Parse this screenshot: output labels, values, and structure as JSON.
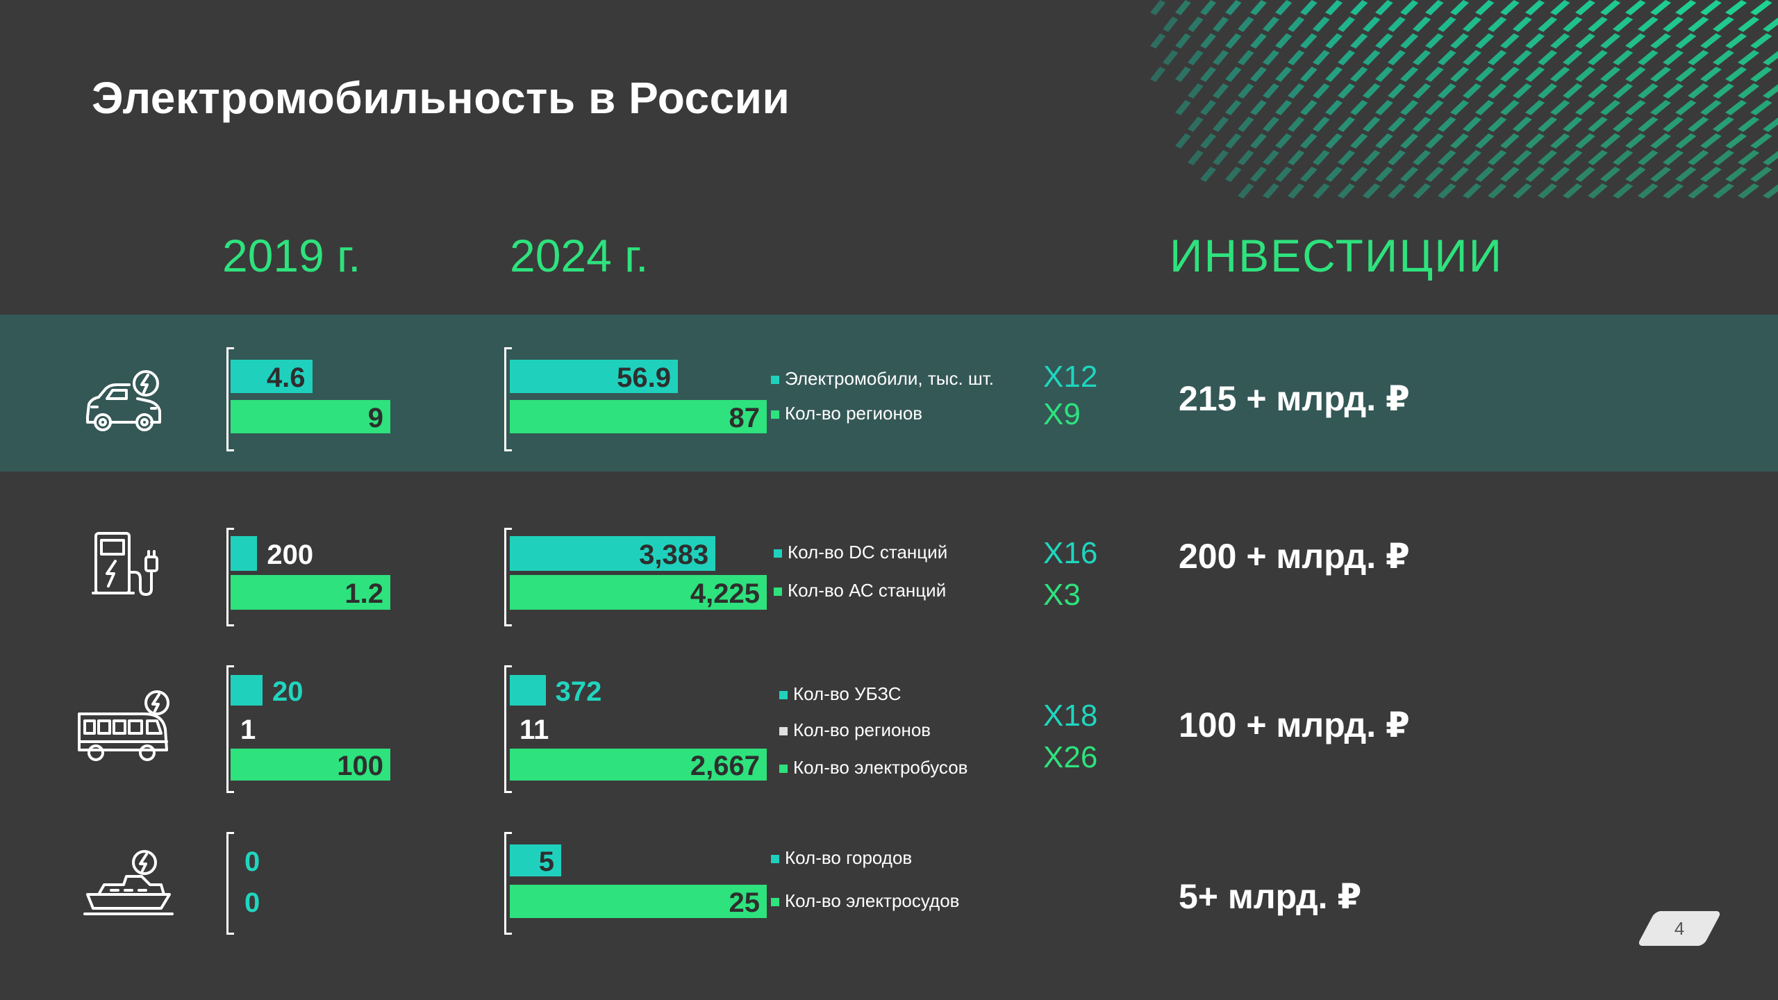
{
  "title": "Электромобильность в России",
  "headers": {
    "y2019": "2019 г.",
    "y2024": "2024 г.",
    "invest": "ИНВЕСТИЦИИ"
  },
  "colors": {
    "teal": "#1fd1bd",
    "green": "#2ee27d",
    "background": "#3a3a3a",
    "band": "#345856",
    "accent": "#2ee27d"
  },
  "page_number": "4",
  "rows": [
    {
      "icon": "electric-car-icon",
      "legend": [
        "Электромобили, тыс. шт.",
        "Кол-во регионов"
      ],
      "multipliers": [
        "X12",
        "X9"
      ],
      "investment": "215 + млрд. ₽"
    },
    {
      "icon": "charging-station-icon",
      "legend": [
        "Кол-во DC станций",
        "Кол-во АС станций"
      ],
      "multipliers": [
        "X16",
        "X3"
      ],
      "investment": "200 + млрд. ₽"
    },
    {
      "icon": "electric-bus-icon",
      "legend": [
        "Кол-во УБЗС",
        "Кол-во регионов",
        "Кол-во электробусов"
      ],
      "multipliers": [
        "X18",
        "X26"
      ],
      "investment": "100 + млрд. ₽"
    },
    {
      "icon": "electric-boat-icon",
      "legend": [
        "Кол-во городов",
        "Кол-во электросудов"
      ],
      "multipliers": [],
      "investment": "5+ млрд. ₽"
    }
  ],
  "chart_data": {
    "type": "bar",
    "categories": [
      "2019 г.",
      "2024 г."
    ],
    "groups": [
      {
        "series": [
          {
            "name": "Электромобили, тыс. шт.",
            "values": [
              4.6,
              56.9
            ],
            "labels": [
              "4.6",
              "56.9"
            ]
          },
          {
            "name": "Кол-во регионов",
            "values": [
              9,
              87
            ],
            "labels": [
              "9",
              "87"
            ]
          }
        ]
      },
      {
        "series": [
          {
            "name": "Кол-во DC станций",
            "values": [
              200,
              3383
            ],
            "labels": [
              "200",
              "3,383"
            ]
          },
          {
            "name": "Кол-во АС станций",
            "values": [
              1200,
              4225
            ],
            "labels": [
              "1.2",
              "4,225"
            ]
          }
        ]
      },
      {
        "series": [
          {
            "name": "Кол-во УБЗС",
            "values": [
              20,
              372
            ],
            "labels": [
              "20",
              "372"
            ]
          },
          {
            "name": "Кол-во регионов",
            "values": [
              1,
              11
            ],
            "labels": [
              "1",
              "11"
            ]
          },
          {
            "name": "Кол-во электробусов",
            "values": [
              100,
              2667
            ],
            "labels": [
              "100",
              "2,667"
            ]
          }
        ]
      },
      {
        "series": [
          {
            "name": "Кол-во городов",
            "values": [
              0,
              5
            ],
            "labels": [
              "0",
              "5"
            ]
          },
          {
            "name": "Кол-во электросудов",
            "values": [
              0,
              25
            ],
            "labels": [
              "0",
              "25"
            ]
          }
        ]
      }
    ]
  }
}
